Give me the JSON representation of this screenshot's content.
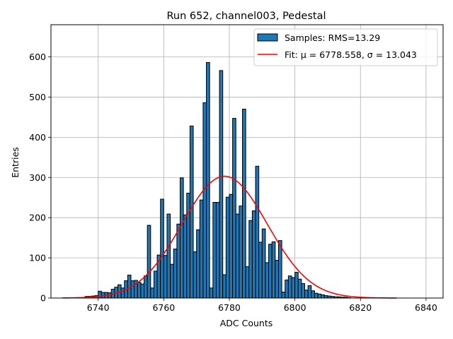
{
  "chart_data": {
    "type": "bar",
    "title": "Run 652, channel003, Pedestal",
    "xlabel": "ADC Counts",
    "ylabel": "Entries",
    "xlim": [
      6725.6,
      6845.2
    ],
    "ylim": [
      0,
      680
    ],
    "grid": true,
    "legend_placement": "top-right",
    "x_ticks": [
      6740,
      6760,
      6780,
      6800,
      6820,
      6840
    ],
    "y_ticks": [
      0,
      100,
      200,
      300,
      400,
      500,
      600
    ],
    "histogram": {
      "label": "Samples: RMS=13.29",
      "color": "#1f77b4",
      "edgecolor": "#000000",
      "bin_start": 6736,
      "bin_width": 1,
      "counts": [
        4,
        4,
        5,
        6,
        17,
        14,
        14,
        13,
        22,
        27,
        33,
        25,
        43,
        57,
        43,
        44,
        39,
        35,
        55,
        181,
        25,
        67,
        107,
        246,
        106,
        209,
        84,
        122,
        184,
        299,
        207,
        261,
        428,
        115,
        170,
        244,
        486,
        586,
        25,
        238,
        238,
        566,
        58,
        251,
        258,
        447,
        209,
        229,
        470,
        78,
        193,
        217,
        328,
        139,
        172,
        88,
        134,
        140,
        94,
        143,
        15,
        45,
        55,
        51,
        64,
        47,
        36,
        20,
        31,
        18,
        12,
        10,
        8,
        6,
        5,
        4,
        3,
        3,
        2,
        2,
        1
      ]
    },
    "fit": {
      "label": "Fit: μ = 6778.558, σ = 13.043",
      "type": "gaussian",
      "color": "#ff0000",
      "mu": 6778.558,
      "sigma": 13.043,
      "amplitude": 303,
      "x_range": [
        6729,
        6831
      ]
    }
  }
}
